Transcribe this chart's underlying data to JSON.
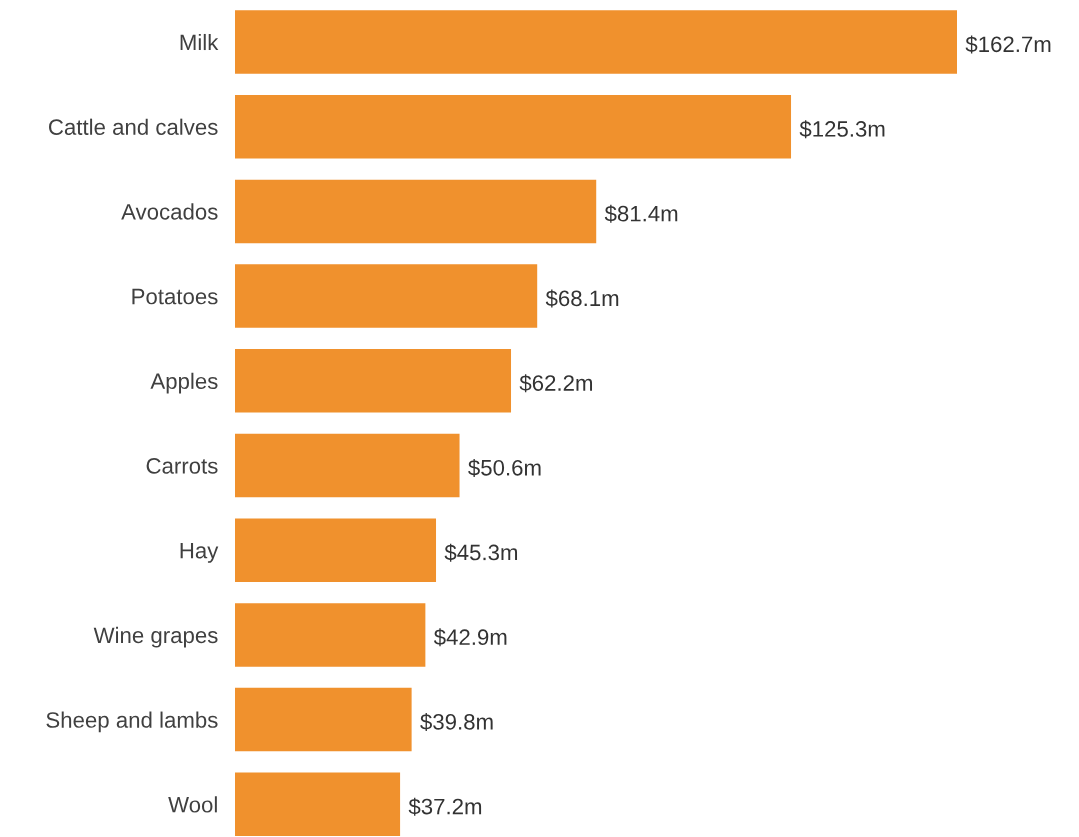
{
  "chart_data": {
    "type": "bar",
    "orientation": "horizontal",
    "categories": [
      "Milk",
      "Cattle and calves",
      "Avocados",
      "Potatoes",
      "Apples",
      "Carrots",
      "Hay",
      "Wine grapes",
      "Sheep and lambs",
      "Wool"
    ],
    "values": [
      162.7,
      125.3,
      81.4,
      68.1,
      62.2,
      50.6,
      45.3,
      42.9,
      39.8,
      37.2
    ],
    "value_labels": [
      "$162.7m",
      "$125.3m",
      "$81.4m",
      "$68.1m",
      "$62.2m",
      "$50.6m",
      "$45.3m",
      "$42.9m",
      "$39.8m",
      "$37.2m"
    ],
    "color": "#f0912d",
    "grid": false,
    "legend": false
  }
}
